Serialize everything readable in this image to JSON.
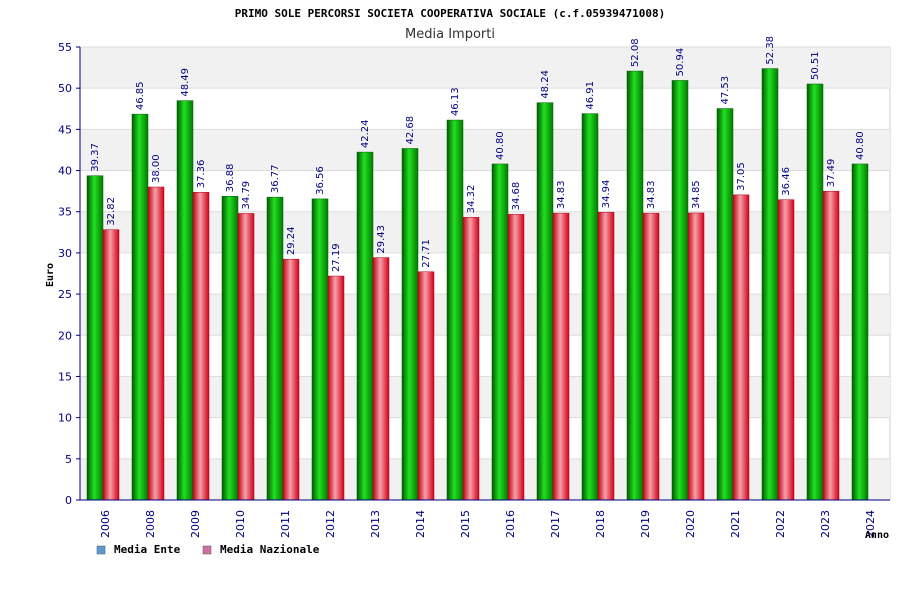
{
  "chart_data": {
    "type": "bar",
    "title": "PRIMO SOLE PERCORSI SOCIETA COOPERATIVA SOCIALE (c.f.05939471008)",
    "subtitle": "Media Importi",
    "xlabel": "Anno",
    "ylabel": "Euro",
    "ylim": [
      0,
      55
    ],
    "yticks": [
      0,
      5,
      10,
      15,
      20,
      25,
      30,
      35,
      40,
      45,
      50,
      55
    ],
    "grid": true,
    "legend_position": "bottom-left",
    "categories": [
      "2006",
      "2008",
      "2009",
      "2010",
      "2011",
      "2012",
      "2013",
      "2014",
      "2015",
      "2016",
      "2017",
      "2018",
      "2019",
      "2020",
      "2021",
      "2022",
      "2023",
      "2024"
    ],
    "series": [
      {
        "name": "Media Ente",
        "color": "#00a000",
        "legend_color": "#5b9bd5",
        "values": [
          39.37,
          46.85,
          48.49,
          36.88,
          36.77,
          36.56,
          42.24,
          42.68,
          46.13,
          40.8,
          48.24,
          46.91,
          52.08,
          50.94,
          47.53,
          52.38,
          50.51,
          40.8
        ],
        "labels": [
          "39.37",
          "46.85",
          "48.49",
          "36.88",
          "36.77",
          "36.56",
          "42.24",
          "42.68",
          "46.13",
          "40.80",
          "48.24",
          "46.91",
          "52.08",
          "50.94",
          "47.53",
          "52.38",
          "50.51",
          "40.80"
        ]
      },
      {
        "name": "Media Nazionale",
        "color": "#e0001a",
        "legend_color": "#d070a0",
        "values": [
          32.82,
          38.0,
          37.36,
          34.79,
          29.24,
          27.19,
          29.43,
          27.71,
          34.32,
          34.68,
          34.83,
          34.94,
          34.83,
          34.85,
          37.05,
          36.46,
          37.49,
          null
        ],
        "labels": [
          "32.82",
          "38.00",
          "37.36",
          "34.79",
          "29.24",
          "27.19",
          "29.43",
          "27.71",
          "34.32",
          "34.68",
          "34.83",
          "34.94",
          "34.83",
          "34.85",
          "37.05",
          "36.46",
          "37.49",
          null
        ]
      }
    ]
  }
}
